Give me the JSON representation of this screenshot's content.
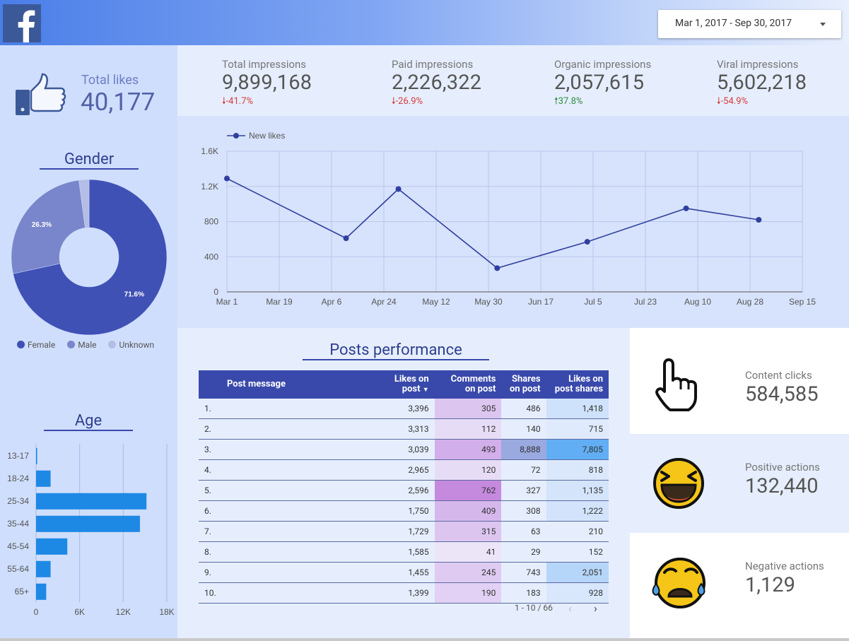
{
  "header": {
    "logo_letter": "f",
    "date_range": "Mar 1, 2017 - Sep 30, 2017"
  },
  "total_likes": {
    "label": "Total likes",
    "value": "40,177"
  },
  "kpis": [
    {
      "label": "Total impressions",
      "value": "9,899,168",
      "delta": "-41.7%",
      "direction": "down"
    },
    {
      "label": "Paid impressions",
      "value": "2,226,322",
      "delta": "-26.9%",
      "direction": "down"
    },
    {
      "label": "Organic impressions",
      "value": "2,057,615",
      "delta": "37.8%",
      "direction": "up"
    },
    {
      "label": "Viral impressions",
      "value": "5,602,218",
      "delta": "-54.9%",
      "direction": "down"
    }
  ],
  "gender": {
    "title": "Gender",
    "legend": [
      "Female",
      "Male",
      "Unknown"
    ],
    "slice_labels": [
      "71.6%",
      "26.3%"
    ]
  },
  "age": {
    "title": "Age"
  },
  "posts": {
    "title": "Posts performance",
    "columns": [
      "Post message",
      "Likes on post",
      "Comments on post",
      "Shares on post",
      "Likes on post shares"
    ],
    "rows": [
      {
        "idx": "1.",
        "likes": "3,396",
        "comments": "305",
        "shares": "486",
        "share_likes": "1,418"
      },
      {
        "idx": "2.",
        "likes": "3,313",
        "comments": "112",
        "shares": "140",
        "share_likes": "715"
      },
      {
        "idx": "3.",
        "likes": "3,039",
        "comments": "493",
        "shares": "8,888",
        "share_likes": "7,805"
      },
      {
        "idx": "4.",
        "likes": "2,965",
        "comments": "120",
        "shares": "72",
        "share_likes": "818"
      },
      {
        "idx": "5.",
        "likes": "2,596",
        "comments": "762",
        "shares": "327",
        "share_likes": "1,135"
      },
      {
        "idx": "6.",
        "likes": "1,750",
        "comments": "409",
        "shares": "308",
        "share_likes": "1,222"
      },
      {
        "idx": "7.",
        "likes": "1,729",
        "comments": "315",
        "shares": "63",
        "share_likes": "210"
      },
      {
        "idx": "8.",
        "likes": "1,585",
        "comments": "41",
        "shares": "29",
        "share_likes": "152"
      },
      {
        "idx": "9.",
        "likes": "1,455",
        "comments": "245",
        "shares": "743",
        "share_likes": "2,051"
      },
      {
        "idx": "10.",
        "likes": "1,399",
        "comments": "190",
        "shares": "183",
        "share_likes": "928"
      }
    ],
    "pagination": "1 - 10 / 66"
  },
  "actions": [
    {
      "label": "Content clicks",
      "value": "584,585",
      "icon": "hand-pointer-icon"
    },
    {
      "label": "Positive actions",
      "value": "132,440",
      "icon": "laughing-emoji-icon"
    },
    {
      "label": "Negative actions",
      "value": "1,129",
      "icon": "crying-emoji-icon"
    }
  ],
  "colors": {
    "primary": "#3949ab",
    "line": "#303f9f",
    "male": "#7986cb",
    "unknown": "#b4bde6",
    "bar": "#1e88e5",
    "negative": "#d73a3a",
    "positive": "#2e8b3f"
  },
  "chart_data": [
    {
      "type": "line",
      "legend": [
        "New likes"
      ],
      "x": [
        "Mar 1",
        "Apr 11",
        "Apr 29",
        "Jun 2",
        "Jul 3",
        "Aug 6",
        "Aug 31"
      ],
      "series": [
        {
          "name": "New likes",
          "values": [
            1290,
            610,
            1170,
            270,
            570,
            950,
            820
          ]
        }
      ],
      "x_ticks": [
        "Mar 1",
        "Mar 19",
        "Apr 6",
        "Apr 24",
        "May 12",
        "May 30",
        "Jun 17",
        "Jul 5",
        "Jul 23",
        "Aug 10",
        "Aug 28",
        "Sep 15"
      ],
      "y_ticks": [
        "0",
        "400",
        "800",
        "1.2K",
        "1.6K"
      ],
      "ylim": [
        0,
        1600
      ],
      "grid": true,
      "legend_position": "top-left"
    },
    {
      "type": "pie",
      "title": "Gender",
      "categories": [
        "Female",
        "Male",
        "Unknown"
      ],
      "values": [
        71.6,
        26.3,
        2.1
      ],
      "donut": true
    },
    {
      "type": "bar",
      "orientation": "horizontal",
      "title": "Age",
      "categories": [
        "13-17",
        "18-24",
        "25-34",
        "35-44",
        "45-54",
        "55-64",
        "65+"
      ],
      "values": [
        150,
        2000,
        15200,
        14300,
        4300,
        2000,
        1400
      ],
      "x_ticks": [
        "0",
        "6K",
        "12K",
        "18K"
      ],
      "xlim": [
        0,
        18000
      ],
      "grid": true
    }
  ]
}
